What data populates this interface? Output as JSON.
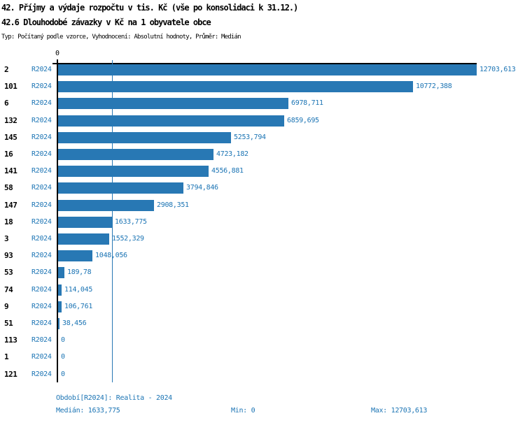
{
  "header": {
    "title_line1": "42. Příjmy a výdaje rozpočtu v tis. Kč (vše po konsolidaci k 31.12.)",
    "title_line2": "42.6 Dlouhodobé závazky v Kč na 1 obyvatele obce",
    "subtitle": "Typ: Počítaný podle vzorce, Vyhodnocení: Absolutní hodnoty, Průměr: Medián"
  },
  "axis": {
    "zero_label": "0"
  },
  "chart_data": {
    "type": "bar",
    "orientation": "horizontal",
    "title": "42.6 Dlouhodobé závazky v Kč na 1 obyvatele obce",
    "series_label": "R2024",
    "xlim": [
      0,
      12703.613
    ],
    "median": 1633.775,
    "min": 0,
    "max": 12703.613,
    "categories": [
      "2",
      "101",
      "6",
      "132",
      "145",
      "16",
      "141",
      "58",
      "147",
      "18",
      "3",
      "93",
      "53",
      "74",
      "9",
      "51",
      "113",
      "1",
      "121"
    ],
    "values": [
      12703.613,
      10772.388,
      6978.711,
      6859.695,
      5253.794,
      4723.182,
      4556.881,
      3794.846,
      2908.351,
      1633.775,
      1552.329,
      1048.056,
      189.78,
      114.045,
      106.761,
      38.456,
      0,
      0,
      0
    ],
    "value_labels": [
      "12703,613",
      "10772,388",
      "6978,711",
      "6859,695",
      "5253,794",
      "4723,182",
      "4556,881",
      "3794,846",
      "2908,351",
      "1633,775",
      "1552,329",
      "1048,056",
      "189,78",
      "114,045",
      "106,761",
      "38,456",
      "0",
      "0",
      "0"
    ]
  },
  "footer": {
    "period_label": "Období[R2024]: Realita - 2024",
    "median_label": "Medián: 1633,775",
    "min_label": "Min: 0",
    "max_label": "Max: 12703,613"
  },
  "colors": {
    "bar": "#2878b4",
    "text_blue": "#1b74b4",
    "axis": "#000000"
  }
}
